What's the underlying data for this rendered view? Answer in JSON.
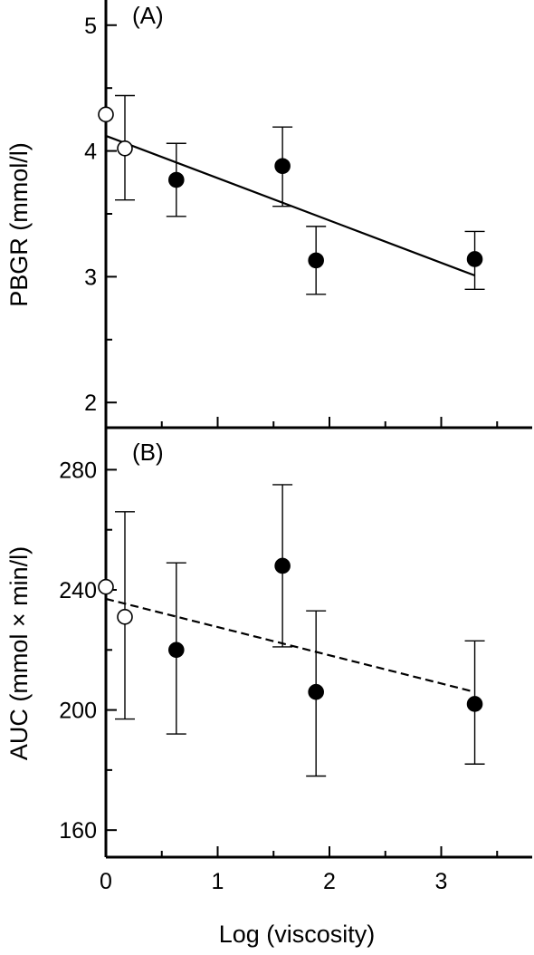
{
  "chart_data": [
    {
      "type": "scatter",
      "panel_label": "(A)",
      "xlabel": "",
      "ylabel": "PBGR (mmol/l)",
      "xlim": [
        0,
        3.8
      ],
      "ylim": [
        1.8,
        5.2
      ],
      "yticks": [
        2,
        3,
        4,
        5
      ],
      "xticks": [
        0,
        1,
        2,
        3
      ],
      "x_tick_labels_shown": false,
      "points": [
        {
          "x": 0.0,
          "y": 4.29,
          "filled": false,
          "err_low": null,
          "err_high": null
        },
        {
          "x": 0.17,
          "y": 4.02,
          "filled": false,
          "err_low": 3.61,
          "err_high": 4.44
        },
        {
          "x": 0.63,
          "y": 3.77,
          "filled": true,
          "err_low": 3.48,
          "err_high": 4.06
        },
        {
          "x": 1.58,
          "y": 3.88,
          "filled": true,
          "err_low": 3.56,
          "err_high": 4.19
        },
        {
          "x": 1.88,
          "y": 3.13,
          "filled": true,
          "err_low": 2.86,
          "err_high": 3.4
        },
        {
          "x": 3.3,
          "y": 3.14,
          "filled": true,
          "err_low": 2.9,
          "err_high": 3.36
        }
      ],
      "regression": {
        "x": [
          0,
          3.3
        ],
        "y": [
          4.12,
          3.01
        ],
        "style": "solid"
      }
    },
    {
      "type": "scatter",
      "panel_label": "(B)",
      "xlabel": "Log (viscosity)",
      "ylabel": "AUC (mmol × min/l)",
      "xlim": [
        0,
        3.8
      ],
      "ylim": [
        151,
        294
      ],
      "yticks": [
        160,
        200,
        240,
        280
      ],
      "xticks": [
        0,
        1,
        2,
        3
      ],
      "x_tick_labels_shown": true,
      "points": [
        {
          "x": 0.0,
          "y": 241,
          "filled": false,
          "err_low": null,
          "err_high": null
        },
        {
          "x": 0.17,
          "y": 231,
          "filled": false,
          "err_low": 197,
          "err_high": 266
        },
        {
          "x": 0.63,
          "y": 220,
          "filled": true,
          "err_low": 192,
          "err_high": 249
        },
        {
          "x": 1.58,
          "y": 248,
          "filled": true,
          "err_low": 221,
          "err_high": 275
        },
        {
          "x": 1.88,
          "y": 206,
          "filled": true,
          "err_low": 178,
          "err_high": 233
        },
        {
          "x": 3.3,
          "y": 202,
          "filled": true,
          "err_low": 182,
          "err_high": 223
        }
      ],
      "regression": {
        "x": [
          0,
          3.3
        ],
        "y": [
          237,
          206
        ],
        "style": "dashed"
      }
    }
  ]
}
